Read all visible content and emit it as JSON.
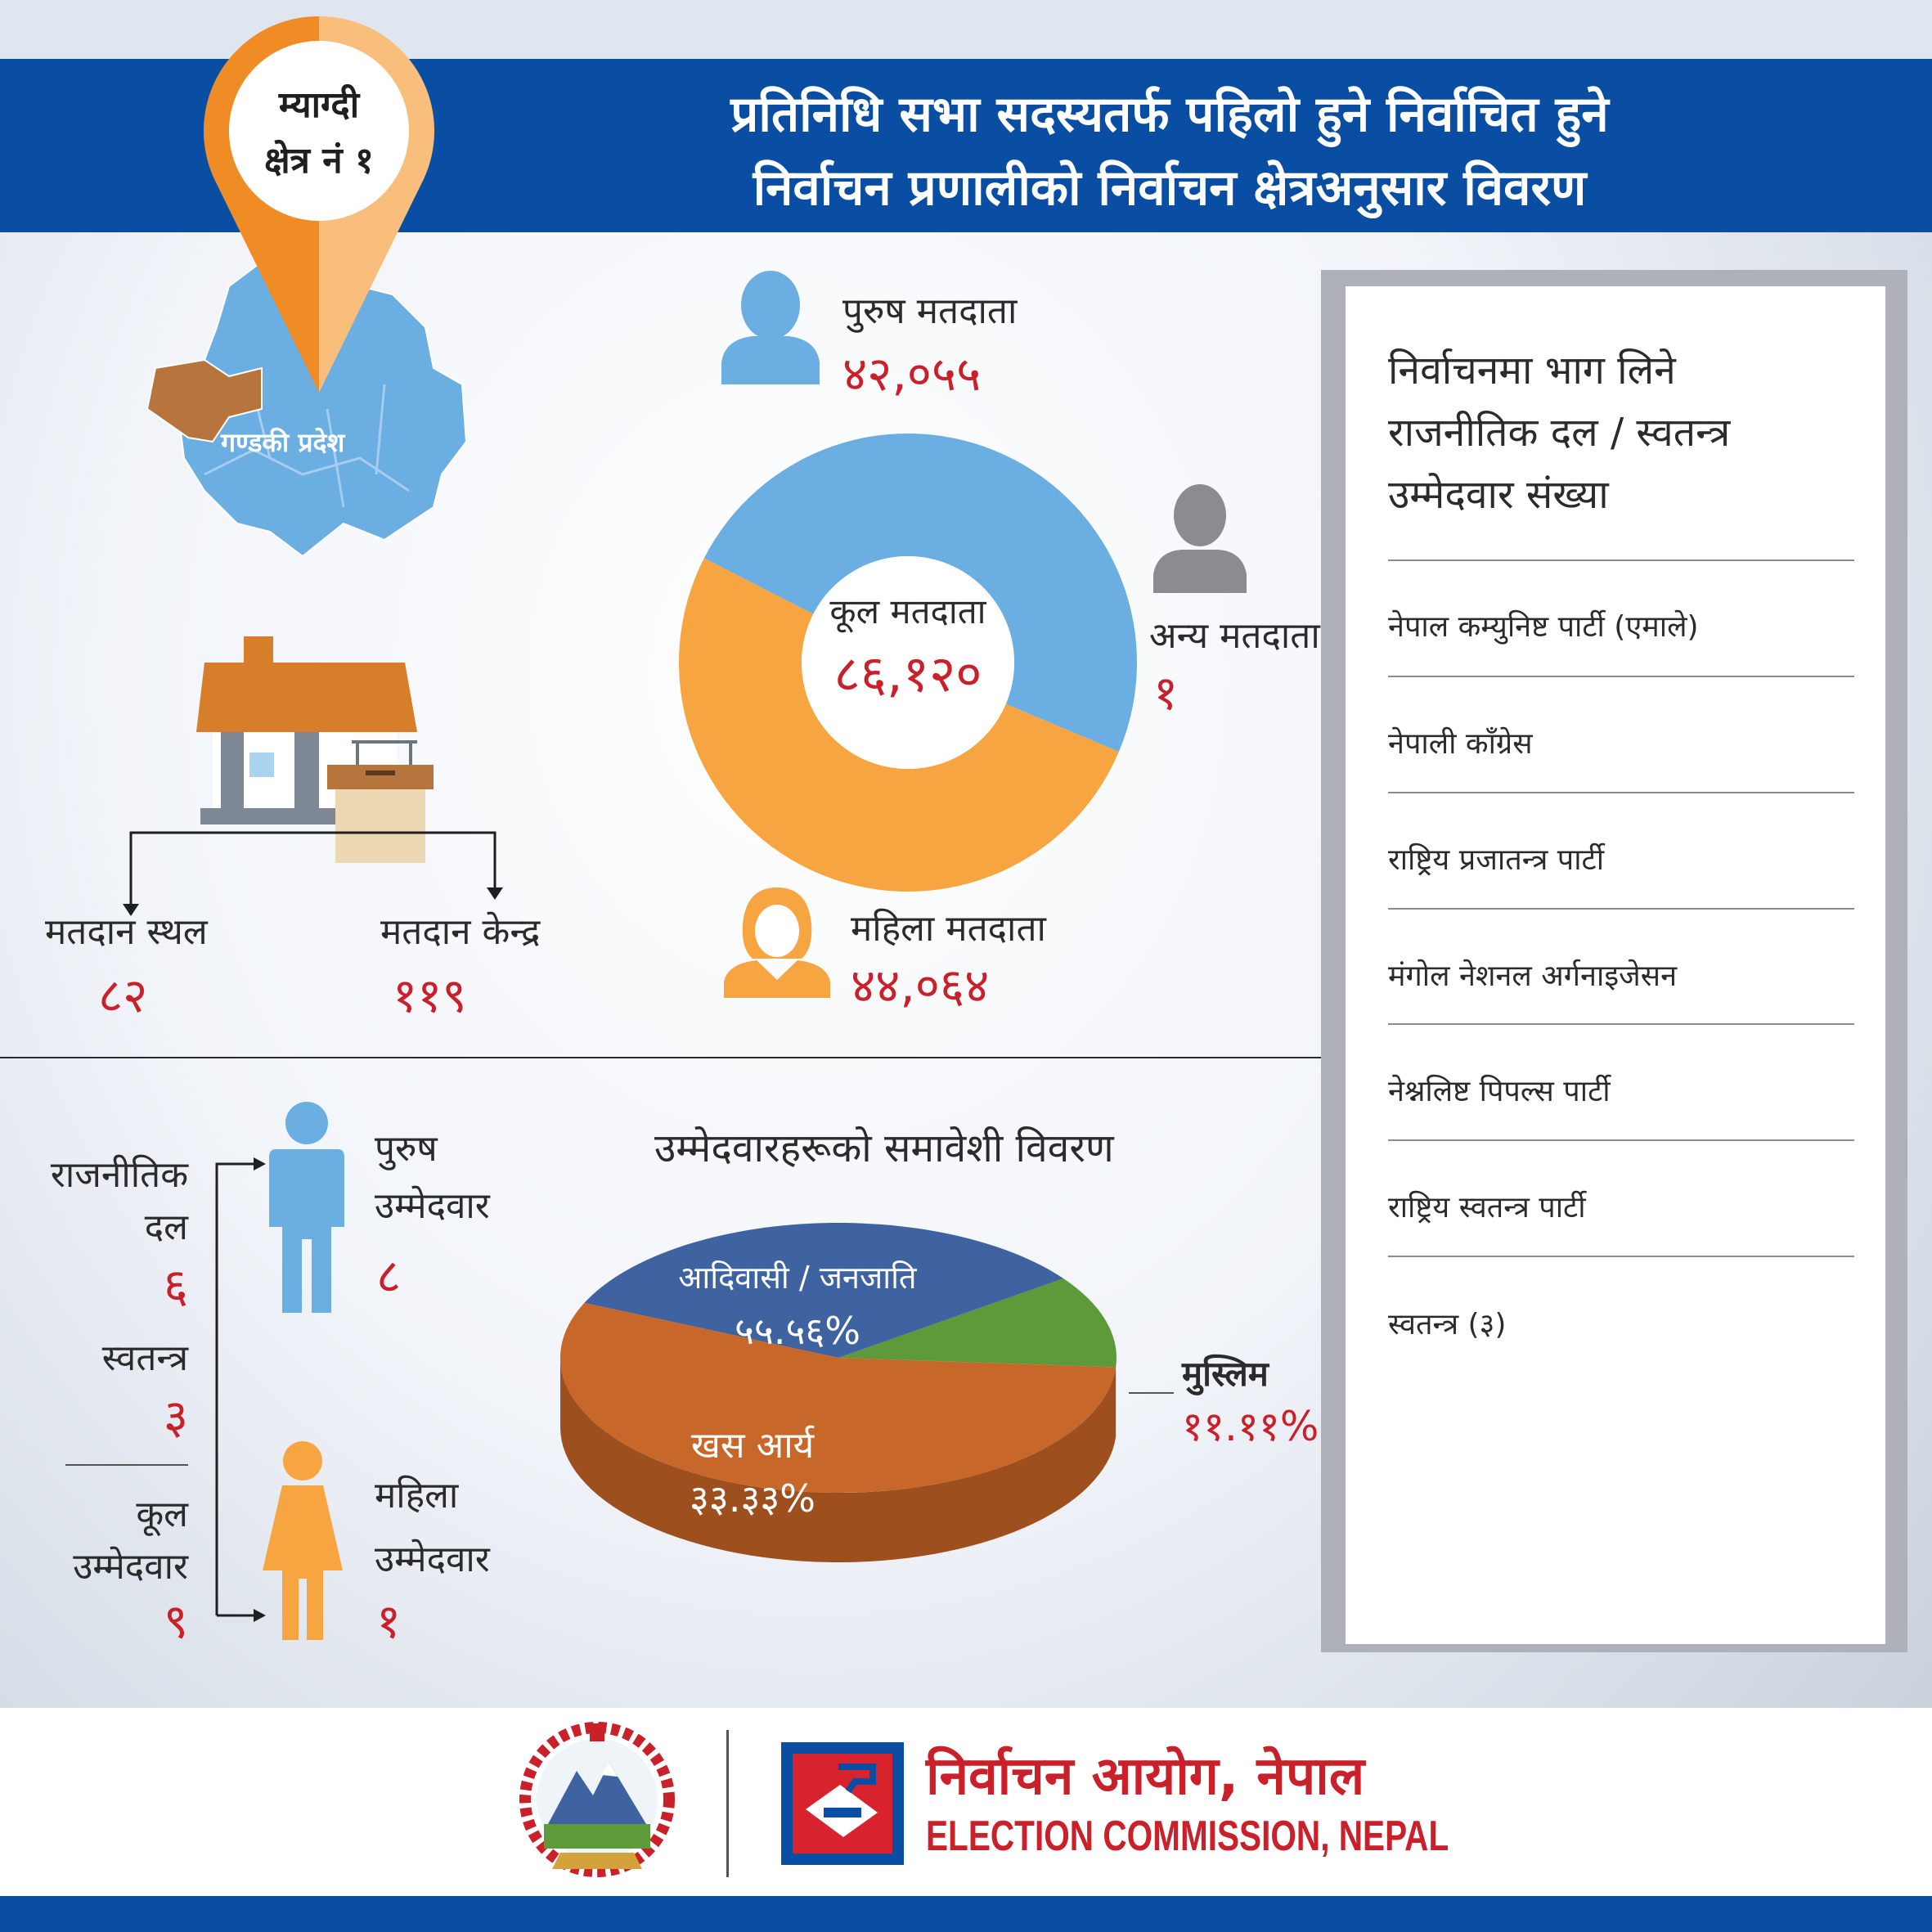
{
  "header": {
    "title_line1": "प्रतिनिधि सभा सदस्यतर्फ पहिलो हुने निर्वाचित हुने",
    "title_line2": "निर्वाचन प्रणालीको निर्वाचन क्षेत्रअनुसार विवरण"
  },
  "constituency": {
    "district": "म्याग्दी",
    "area": "क्षेत्र नं १",
    "province": "गण्डकी प्रदेश"
  },
  "voters": {
    "male_label": "पुरुष मतदाता",
    "male_value": "४२,०५५",
    "female_label": "महिला मतदाता",
    "female_value": "४४,०६४",
    "other_label": "अन्य मतदाता",
    "other_value": "१",
    "total_label": "कूल मतदाता",
    "total_value": "८६,१२०"
  },
  "polling": {
    "place_label": "मतदान स्थल",
    "place_value": "८२",
    "center_label": "मतदान केन्द्र",
    "center_value": "११९"
  },
  "candidates": {
    "party_label_1": "राजनीतिक",
    "party_label_2": "दल",
    "party_value": "६",
    "independent_label": "स्वतन्त्र",
    "independent_value": "३",
    "total_label_1": "कूल",
    "total_label_2": "उम्मेदवार",
    "total_value": "९",
    "male_label_1": "पुरुष",
    "male_label_2": "उम्मेदवार",
    "male_value": "८",
    "female_label_1": "महिला",
    "female_label_2": "उम्मेदवार",
    "female_value": "१"
  },
  "inclusion": {
    "title": "उम्मेदवारहरूको समावेशी विवरण"
  },
  "parties": {
    "title_line1": "निर्वाचनमा भाग लिने",
    "title_line2": "राजनीतिक दल / स्वतन्त्र",
    "title_line3": "उम्मेदवार संख्या",
    "items": [
      "नेपाल कम्युनिष्ट पार्टी (एमाले)",
      "नेपाली काँग्रेस",
      "राष्ट्रिय प्रजातन्त्र पार्टी",
      "मंगोल नेशनल अर्गनाइजेसन",
      "नेश्नलिष्ट पिपल्स पार्टी",
      "राष्ट्रिय स्वतन्त्र पार्टी",
      "स्वतन्त्र (३)"
    ]
  },
  "footer": {
    "org_nepali": "निर्वाचन आयोग, नेपाल",
    "org_english": "ELECTION COMMISSION, NEPAL"
  },
  "colors": {
    "header_blue": "#0a4ea3",
    "male_blue": "#6aaee2",
    "female_orange": "#f7a541",
    "other_gray": "#8a8c8f",
    "accent_red": "#c9202a",
    "pie_khas": "#3e63a0",
    "pie_adivasi": "#c8672a",
    "pie_muslim": "#5e9a3a"
  },
  "chart_data": [
    {
      "type": "pie",
      "variant": "donut",
      "categories": [
        "पुरुष मतदाता",
        "महिला मतदाता",
        "अन्य मतदाता"
      ],
      "values": [
        42055,
        44064,
        1
      ],
      "center_label": "कूल मतदाता",
      "center_value": "८६,१२०"
    },
    {
      "type": "pie",
      "variant": "3d",
      "title": "उम्मेदवारहरूको समावेशी विवरण",
      "categories": [
        "खस आर्य",
        "आदिवासी / जनजाति",
        "मुस्लिम"
      ],
      "values": [
        33.33,
        55.56,
        11.11
      ],
      "value_labels": [
        "३३.३३%",
        "५५.५६%",
        "११.११%"
      ]
    }
  ]
}
